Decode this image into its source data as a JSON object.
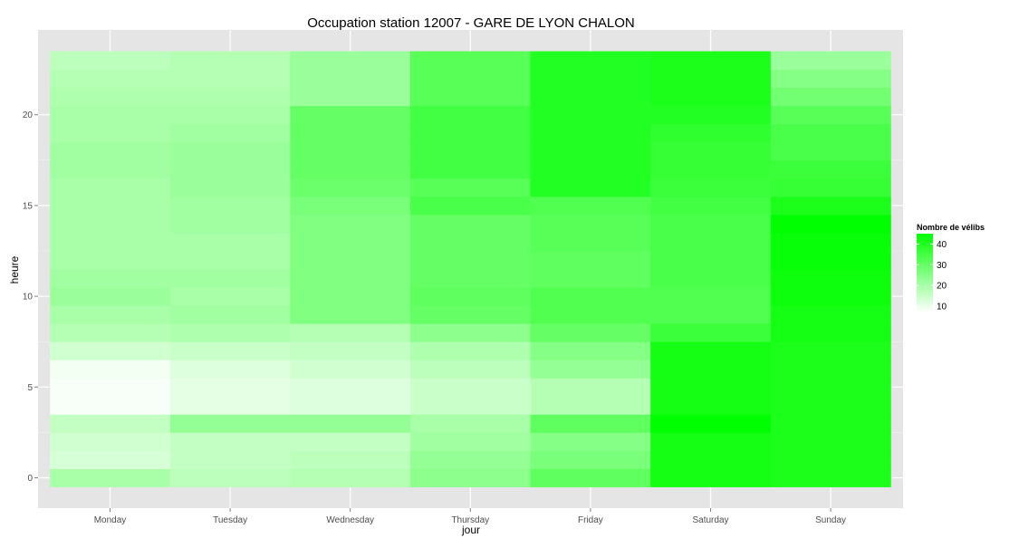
{
  "chart_data": {
    "type": "heatmap",
    "title": "Occupation station 12007 - GARE DE LYON CHALON",
    "xlabel": "jour",
    "ylabel": "heure",
    "x_categories": [
      "Monday",
      "Tuesday",
      "Wednesday",
      "Thursday",
      "Friday",
      "Saturday",
      "Sunday"
    ],
    "y_values": [
      0,
      1,
      2,
      3,
      4,
      5,
      6,
      7,
      8,
      9,
      10,
      11,
      12,
      13,
      14,
      15,
      16,
      17,
      18,
      19,
      20,
      21,
      22,
      23
    ],
    "y_ticks": [
      0,
      5,
      10,
      15,
      20
    ],
    "ylim": [
      -0.5,
      23.5
    ],
    "grid": true,
    "legend": {
      "title": "Nombre de vélibs",
      "ticks": [
        10,
        20,
        30,
        40
      ],
      "range": [
        7,
        45
      ],
      "low_color": "#ffffff",
      "high_color": "#00ff00",
      "placement": "right"
    },
    "values": {
      "Monday": [
        20,
        13,
        14,
        16,
        8,
        8,
        9,
        14,
        18,
        20,
        22,
        21,
        20,
        20,
        20,
        20,
        20,
        21,
        21,
        20,
        20,
        19,
        18,
        17
      ],
      "Tuesday": [
        17,
        16,
        16,
        23,
        11,
        11,
        12,
        15,
        19,
        21,
        20,
        21,
        20,
        20,
        21,
        21,
        22,
        22,
        22,
        21,
        20,
        19,
        18,
        18
      ],
      "Wednesday": [
        18,
        17,
        16,
        23,
        12,
        12,
        14,
        16,
        18,
        26,
        26,
        26,
        26,
        26,
        26,
        27,
        29,
        30,
        30,
        30,
        30,
        22,
        22,
        22
      ],
      "Thursday": [
        24,
        23,
        21,
        20,
        15,
        15,
        17,
        19,
        24,
        30,
        31,
        30,
        30,
        30,
        30,
        34,
        32,
        35,
        35,
        35,
        35,
        32,
        32,
        32
      ],
      "Friday": [
        31,
        27,
        25,
        31,
        18,
        18,
        23,
        25,
        30,
        33,
        33,
        31,
        31,
        32,
        32,
        33,
        40,
        40,
        40,
        40,
        40,
        40,
        40,
        40
      ],
      "Saturday": [
        42,
        42,
        42,
        45,
        42,
        42,
        42,
        42,
        36,
        33,
        33,
        34,
        34,
        34,
        34,
        35,
        36,
        37,
        37,
        38,
        40,
        41,
        41,
        41
      ],
      "Sunday": [
        41,
        41,
        41,
        41,
        41,
        41,
        41,
        41,
        42,
        42,
        43,
        43,
        44,
        44,
        45,
        41,
        37,
        36,
        34,
        34,
        32,
        28,
        25,
        22
      ]
    }
  }
}
